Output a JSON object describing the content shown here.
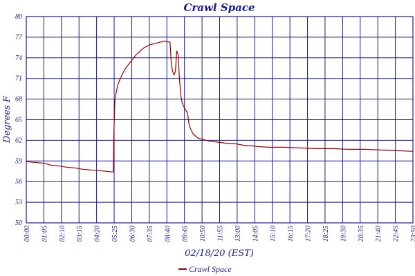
{
  "chart_data": {
    "type": "line",
    "title": "Crawl Space",
    "xlabel": "02/18/20 (EST)",
    "ylabel": "Degrees F",
    "ylim": [
      50,
      80
    ],
    "yticks": [
      "80",
      "77",
      "74",
      "71",
      "68",
      "65",
      "62",
      "59",
      "56",
      "53",
      "50"
    ],
    "xticks": [
      "00:00",
      "01:05",
      "02:10",
      "03:15",
      "04:20",
      "05:25",
      "06:30",
      "07:35",
      "08:40",
      "09:45",
      "10:50",
      "11:55",
      "13:00",
      "14:05",
      "15:10",
      "16:15",
      "17:20",
      "18:25",
      "19:30",
      "20:35",
      "21:40",
      "22:45",
      "23:50"
    ],
    "grid": true,
    "legend_position": "bottom",
    "colors": {
      "series": "#a00000",
      "axis": "#1a1a8c"
    },
    "series": [
      {
        "name": "Crawl Space",
        "x": [
          0,
          30,
          60,
          75,
          90,
          120,
          150,
          180,
          210,
          240,
          270,
          300,
          320,
          324,
          325,
          326,
          330,
          335,
          340,
          350,
          360,
          370,
          380,
          390,
          400,
          410,
          420,
          430,
          440,
          450,
          460,
          470,
          480,
          490,
          500,
          510,
          520,
          530,
          535,
          540,
          545,
          550,
          555,
          560,
          565,
          570,
          575,
          580,
          585,
          590,
          595,
          600,
          605,
          610,
          620,
          630,
          640,
          660,
          680,
          700,
          720,
          740,
          780,
          820,
          840,
          860,
          900,
          960,
          1020,
          1080,
          1140,
          1200,
          1260,
          1320,
          1380,
          1439
        ],
        "y": [
          58.9,
          58.8,
          58.7,
          58.6,
          58.4,
          58.3,
          58.1,
          58.0,
          57.8,
          57.7,
          57.6,
          57.5,
          57.4,
          57.4,
          61.5,
          63.0,
          68.0,
          69.0,
          70.0,
          71.0,
          71.8,
          72.5,
          73.0,
          73.5,
          74.0,
          74.5,
          74.8,
          75.2,
          75.5,
          75.7,
          75.9,
          76.0,
          76.1,
          76.2,
          76.3,
          76.4,
          76.4,
          76.3,
          76.3,
          73.0,
          72.0,
          71.5,
          72.0,
          75.0,
          74.5,
          71.0,
          68.5,
          67.5,
          67.0,
          66.6,
          66.3,
          66.0,
          64.5,
          63.8,
          63.0,
          62.6,
          62.3,
          62.1,
          61.9,
          61.8,
          61.7,
          61.6,
          61.5,
          61.2,
          61.2,
          61.1,
          61.0,
          61.0,
          60.9,
          60.8,
          60.8,
          60.7,
          60.7,
          60.6,
          60.5,
          60.4
        ]
      }
    ]
  }
}
